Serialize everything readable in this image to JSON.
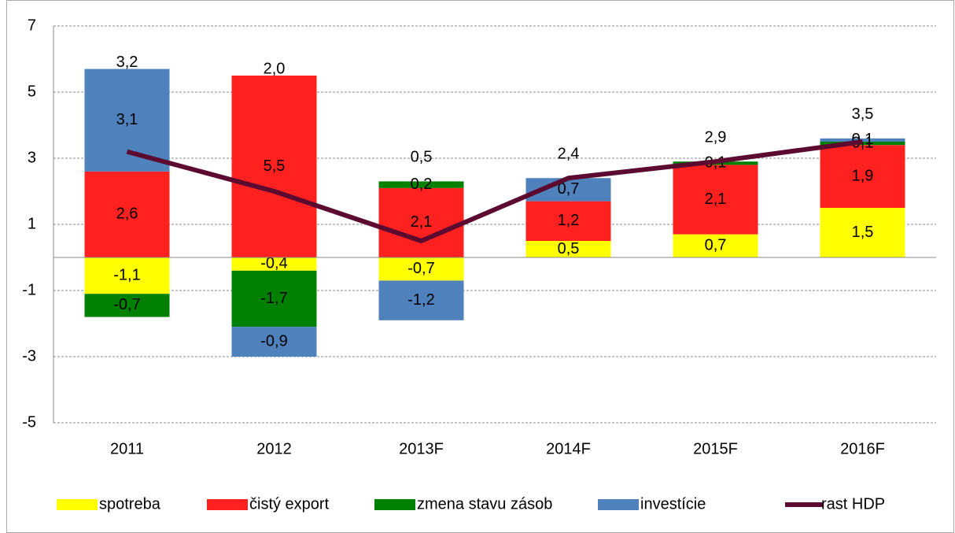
{
  "chart_data": {
    "type": "bar",
    "stacked": true,
    "categories": [
      "2011",
      "2012",
      "2013F",
      "2014F",
      "2015F",
      "2016F"
    ],
    "series": [
      {
        "name": "spotreba",
        "color": "#ffff00",
        "values": [
          -1.1,
          -0.4,
          -0.7,
          0.5,
          0.7,
          1.5
        ],
        "value_labels": [
          "-1,1",
          "-0,4",
          "-0,7",
          "0,5",
          "0,7",
          "1,5"
        ]
      },
      {
        "name": "čistý export",
        "color": "#ff2020",
        "values": [
          2.6,
          5.5,
          2.1,
          1.2,
          2.1,
          1.9
        ],
        "value_labels": [
          "2,6",
          "5,5",
          "2,1",
          "1,2",
          "2,1",
          "1,9"
        ]
      },
      {
        "name": "zmena stavu zásob",
        "color": "#008000",
        "values": [
          -0.7,
          -1.7,
          0.2,
          null,
          0.1,
          0.1
        ],
        "value_labels": [
          "-0,7",
          "-1,7",
          "0,2",
          null,
          "0,1",
          "0,1"
        ]
      },
      {
        "name": "investície",
        "color": "#4f81bd",
        "values": [
          3.1,
          -0.9,
          -1.2,
          0.7,
          null,
          0.1
        ],
        "value_labels": [
          "3,1",
          "-0,9",
          "-1,2",
          "0,7",
          null,
          "0,1"
        ]
      },
      {
        "name": "rast HDP",
        "type": "line",
        "color": "#5c0a2f",
        "values": [
          3.2,
          2.0,
          0.5,
          2.4,
          2.9,
          3.5
        ],
        "value_labels": [
          "3,2",
          "2,0",
          "0,5",
          "2,4",
          "2,9",
          "3,5"
        ]
      }
    ],
    "ylim": [
      -5,
      7
    ],
    "yticks": [
      -5,
      -3,
      -1,
      1,
      3,
      5,
      7
    ],
    "grid": true,
    "legend": "bottom"
  }
}
